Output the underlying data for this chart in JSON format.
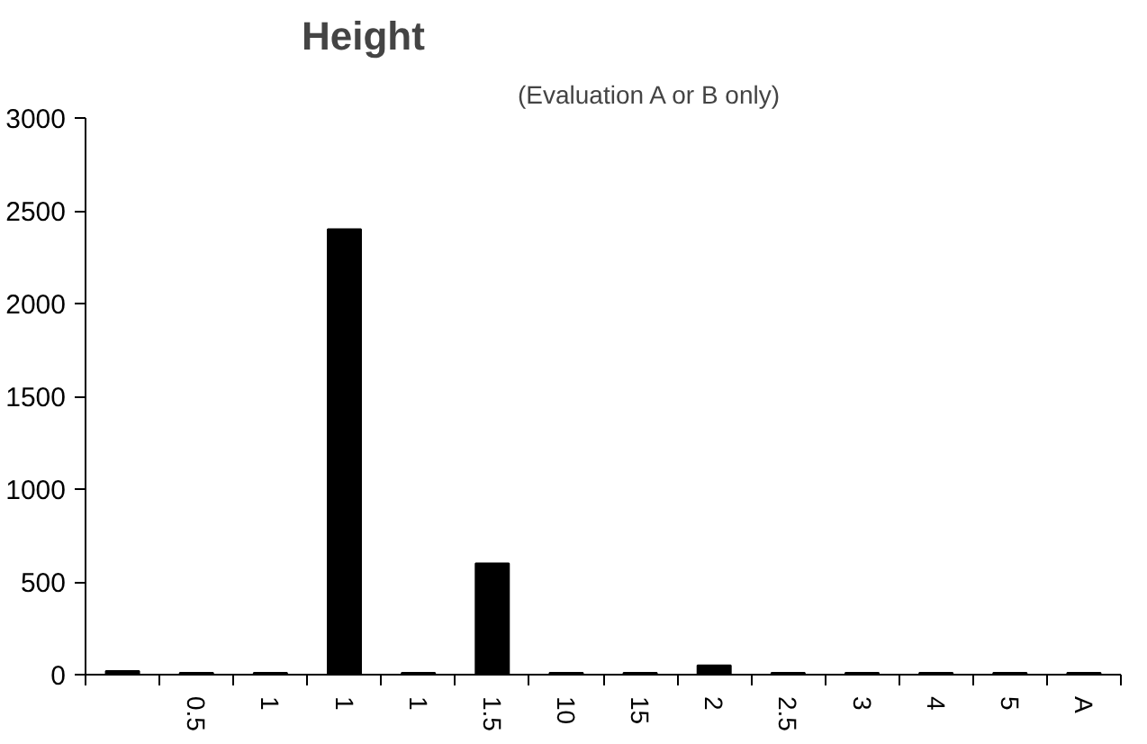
{
  "chart_data": {
    "type": "bar",
    "title": "Height",
    "subtitle": "(Evaluation A or B only)",
    "categories": [
      null,
      "0.5",
      "1",
      "1",
      "1",
      "1.5",
      "10",
      "15",
      "2",
      "2.5",
      "3",
      "4",
      "5",
      "A"
    ],
    "values": [
      20,
      10,
      10,
      2400,
      10,
      600,
      10,
      10,
      50,
      10,
      10,
      10,
      10,
      10
    ],
    "color": "#000000",
    "ylim": [
      0,
      3000
    ],
    "yticks": [
      0,
      500,
      1000,
      1500,
      2000,
      2500,
      3000
    ],
    "grid": false
  }
}
